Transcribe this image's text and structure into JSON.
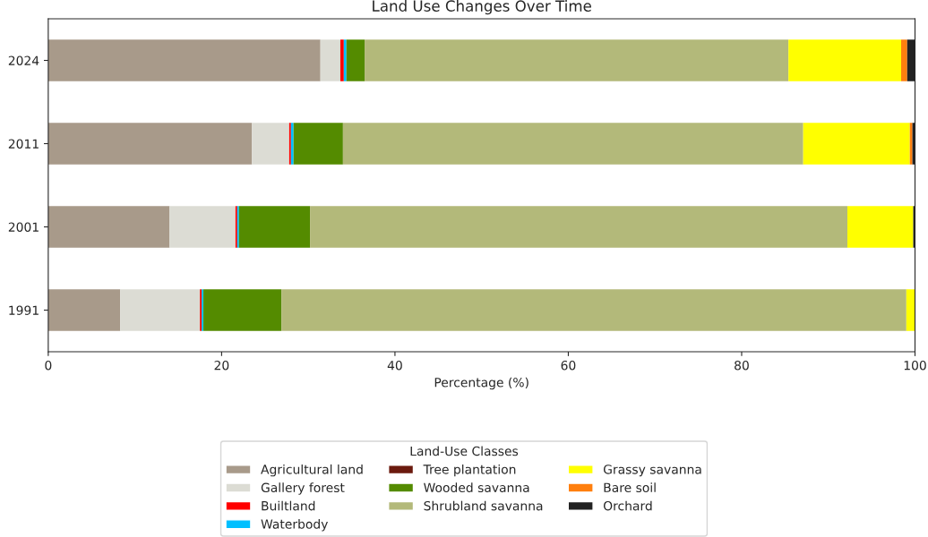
{
  "chart_data": {
    "type": "bar",
    "title": "Land Use Changes Over Time",
    "xlabel": "Percentage (%)",
    "legend_title": "Land-Use Classes",
    "orientation": "horizontal",
    "stacked": true,
    "categories": [
      "2024",
      "2011",
      "2001",
      "1991"
    ],
    "series": [
      {
        "name": "Agricultural land",
        "color": "#a89a8a",
        "values": [
          31.4,
          23.5,
          14.0,
          8.3
        ]
      },
      {
        "name": "Gallery forest",
        "color": "#dcdcd4",
        "values": [
          2.3,
          4.3,
          7.6,
          9.2
        ]
      },
      {
        "name": "Builtland",
        "color": "#ff0000",
        "values": [
          0.4,
          0.2,
          0.2,
          0.2
        ]
      },
      {
        "name": "Waterbody",
        "color": "#00bfff",
        "values": [
          0.3,
          0.3,
          0.2,
          0.2
        ]
      },
      {
        "name": "Tree plantation",
        "color": "#6b1a0e",
        "values": [
          0,
          0,
          0,
          0
        ]
      },
      {
        "name": "Wooded savanna",
        "color": "#548b00",
        "values": [
          2.1,
          5.7,
          8.2,
          9.0
        ]
      },
      {
        "name": "Shrubland savanna",
        "color": "#b3b97a",
        "values": [
          48.9,
          53.1,
          62.0,
          72.1
        ]
      },
      {
        "name": "Grassy savanna",
        "color": "#ffff00",
        "values": [
          13.0,
          12.3,
          7.6,
          1.1
        ]
      },
      {
        "name": "Bare soil",
        "color": "#ff7f0e",
        "values": [
          0.7,
          0.3,
          0,
          0
        ]
      },
      {
        "name": "Orchard",
        "color": "#222222",
        "values": [
          0.9,
          0.4,
          0.2,
          0
        ]
      }
    ],
    "xlim": [
      0,
      100
    ],
    "xticks": [
      0,
      20,
      40,
      60,
      80,
      100
    ],
    "grid": false,
    "legend": "bottom"
  }
}
